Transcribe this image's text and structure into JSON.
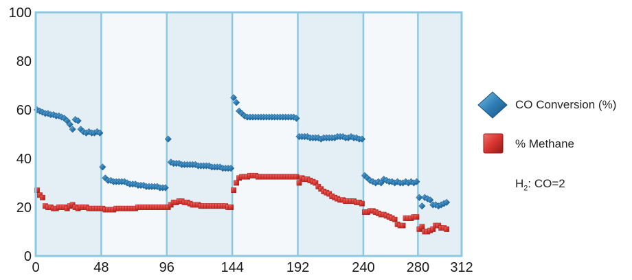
{
  "chart_data": {
    "type": "scatter",
    "title": "",
    "xlabel": "",
    "ylabel": "",
    "xlim": [
      0,
      312
    ],
    "ylim": [
      0,
      100
    ],
    "x_ticks": [
      0,
      48,
      96,
      144,
      192,
      240,
      280,
      312
    ],
    "y_ticks": [
      0,
      20,
      40,
      60,
      80,
      100
    ],
    "period_boundaries": [
      48,
      96,
      144,
      192,
      240,
      280
    ],
    "grid": false,
    "legend_position": "right",
    "note": {
      "base": "H",
      "sub": "2",
      "rest": ": CO=2"
    },
    "colors": {
      "border": "#8cc8e2",
      "band": "#e4eef5",
      "band_alt": "#f4f8fb",
      "co": "#2f7fb6",
      "methane": "#d7342f"
    },
    "series": [
      {
        "name": "CO Conversion (%)",
        "marker": "diamond",
        "color": "#2f7fb6",
        "points": [
          [
            1,
            60
          ],
          [
            3,
            59.5
          ],
          [
            5,
            59
          ],
          [
            7,
            58.5
          ],
          [
            9,
            58.5
          ],
          [
            11,
            58
          ],
          [
            13,
            58
          ],
          [
            15,
            57.5
          ],
          [
            17,
            57.5
          ],
          [
            19,
            57
          ],
          [
            21,
            56.5
          ],
          [
            23,
            55.5
          ],
          [
            25,
            54
          ],
          [
            27,
            52
          ],
          [
            29,
            56
          ],
          [
            31,
            55.5
          ],
          [
            33,
            52
          ],
          [
            35,
            51
          ],
          [
            37,
            50.5
          ],
          [
            39,
            51
          ],
          [
            41,
            50.5
          ],
          [
            43,
            50.5
          ],
          [
            45,
            51
          ],
          [
            47,
            50.5
          ],
          [
            49,
            36.5
          ],
          [
            51,
            32
          ],
          [
            53,
            31
          ],
          [
            55,
            31
          ],
          [
            57,
            30.5
          ],
          [
            59,
            30.5
          ],
          [
            61,
            30.5
          ],
          [
            63,
            30.5
          ],
          [
            65,
            30.5
          ],
          [
            67,
            30
          ],
          [
            69,
            29.5
          ],
          [
            71,
            29.5
          ],
          [
            73,
            29.5
          ],
          [
            75,
            29
          ],
          [
            77,
            29
          ],
          [
            79,
            29
          ],
          [
            81,
            28.5
          ],
          [
            83,
            28.5
          ],
          [
            85,
            28.5
          ],
          [
            87,
            28.5
          ],
          [
            89,
            28.5
          ],
          [
            91,
            28
          ],
          [
            93,
            28
          ],
          [
            95,
            28
          ],
          [
            97,
            48
          ],
          [
            99,
            38.5
          ],
          [
            101,
            38
          ],
          [
            103,
            38
          ],
          [
            105,
            38
          ],
          [
            107,
            37.5
          ],
          [
            109,
            37.5
          ],
          [
            111,
            37.5
          ],
          [
            113,
            37.5
          ],
          [
            115,
            37.5
          ],
          [
            117,
            37.5
          ],
          [
            119,
            37
          ],
          [
            121,
            37
          ],
          [
            123,
            37
          ],
          [
            125,
            37
          ],
          [
            127,
            37
          ],
          [
            129,
            36.5
          ],
          [
            131,
            36.5
          ],
          [
            133,
            36.5
          ],
          [
            135,
            36.5
          ],
          [
            137,
            36
          ],
          [
            139,
            36
          ],
          [
            141,
            36
          ],
          [
            143,
            36
          ],
          [
            145,
            65
          ],
          [
            147,
            63
          ],
          [
            149,
            59.5
          ],
          [
            151,
            58.5
          ],
          [
            153,
            57.5
          ],
          [
            155,
            57
          ],
          [
            157,
            57
          ],
          [
            159,
            57
          ],
          [
            161,
            57
          ],
          [
            163,
            57
          ],
          [
            165,
            57
          ],
          [
            167,
            57
          ],
          [
            169,
            57
          ],
          [
            171,
            57
          ],
          [
            173,
            57
          ],
          [
            175,
            57
          ],
          [
            177,
            57
          ],
          [
            179,
            57
          ],
          [
            181,
            57
          ],
          [
            183,
            57
          ],
          [
            185,
            57
          ],
          [
            187,
            57
          ],
          [
            189,
            57
          ],
          [
            191,
            56.5
          ],
          [
            193,
            49
          ],
          [
            195,
            49
          ],
          [
            197,
            49
          ],
          [
            199,
            49
          ],
          [
            201,
            48.5
          ],
          [
            203,
            48.5
          ],
          [
            205,
            48.5
          ],
          [
            207,
            48.5
          ],
          [
            209,
            48
          ],
          [
            211,
            48.5
          ],
          [
            213,
            48.5
          ],
          [
            215,
            48.5
          ],
          [
            217,
            48.5
          ],
          [
            219,
            48.5
          ],
          [
            221,
            49
          ],
          [
            223,
            49
          ],
          [
            225,
            49
          ],
          [
            227,
            48.5
          ],
          [
            229,
            48.5
          ],
          [
            231,
            49
          ],
          [
            233,
            48.5
          ],
          [
            235,
            48.5
          ],
          [
            237,
            48
          ],
          [
            239,
            48
          ],
          [
            241,
            33
          ],
          [
            243,
            32
          ],
          [
            245,
            31
          ],
          [
            247,
            30.5
          ],
          [
            249,
            30
          ],
          [
            251,
            30.5
          ],
          [
            253,
            30
          ],
          [
            255,
            31.5
          ],
          [
            257,
            31
          ],
          [
            259,
            30.5
          ],
          [
            261,
            30.5
          ],
          [
            263,
            30
          ],
          [
            265,
            30.5
          ],
          [
            267,
            30
          ],
          [
            269,
            30
          ],
          [
            271,
            30.5
          ],
          [
            273,
            30
          ],
          [
            275,
            30.5
          ],
          [
            277,
            30
          ],
          [
            279,
            30.5
          ],
          [
            281,
            24
          ],
          [
            283,
            20.5
          ],
          [
            285,
            24
          ],
          [
            287,
            23.5
          ],
          [
            289,
            23
          ],
          [
            291,
            21
          ],
          [
            293,
            21
          ],
          [
            295,
            20.5
          ],
          [
            297,
            21
          ],
          [
            299,
            21.5
          ],
          [
            301,
            22
          ]
        ]
      },
      {
        "name": "% Methane",
        "marker": "square",
        "color": "#d7342f",
        "points": [
          [
            1,
            27
          ],
          [
            3,
            25
          ],
          [
            5,
            24
          ],
          [
            7,
            20.5
          ],
          [
            9,
            20
          ],
          [
            11,
            20
          ],
          [
            13,
            19.5
          ],
          [
            15,
            19.5
          ],
          [
            17,
            20
          ],
          [
            19,
            20
          ],
          [
            21,
            20
          ],
          [
            23,
            19.5
          ],
          [
            25,
            20.5
          ],
          [
            27,
            21
          ],
          [
            29,
            20
          ],
          [
            31,
            19.5
          ],
          [
            33,
            20
          ],
          [
            35,
            20
          ],
          [
            37,
            20
          ],
          [
            39,
            19.5
          ],
          [
            41,
            19.5
          ],
          [
            43,
            19.5
          ],
          [
            45,
            19.5
          ],
          [
            47,
            19.5
          ],
          [
            49,
            19.5
          ],
          [
            51,
            19
          ],
          [
            53,
            19
          ],
          [
            55,
            19
          ],
          [
            57,
            19
          ],
          [
            59,
            19.5
          ],
          [
            61,
            19.5
          ],
          [
            63,
            19.5
          ],
          [
            65,
            19.5
          ],
          [
            67,
            19.5
          ],
          [
            69,
            19.5
          ],
          [
            71,
            19.5
          ],
          [
            73,
            19.5
          ],
          [
            75,
            20
          ],
          [
            77,
            20
          ],
          [
            79,
            20
          ],
          [
            81,
            20
          ],
          [
            83,
            20
          ],
          [
            85,
            20
          ],
          [
            87,
            20
          ],
          [
            89,
            20
          ],
          [
            91,
            20
          ],
          [
            93,
            20
          ],
          [
            95,
            20
          ],
          [
            97,
            20
          ],
          [
            99,
            21
          ],
          [
            101,
            22
          ],
          [
            103,
            22
          ],
          [
            105,
            22.5
          ],
          [
            107,
            22.5
          ],
          [
            109,
            22
          ],
          [
            111,
            22
          ],
          [
            113,
            21.5
          ],
          [
            115,
            21
          ],
          [
            117,
            21
          ],
          [
            119,
            21
          ],
          [
            121,
            20.5
          ],
          [
            123,
            20.5
          ],
          [
            125,
            20.5
          ],
          [
            127,
            20.5
          ],
          [
            129,
            20.5
          ],
          [
            131,
            20.5
          ],
          [
            133,
            20.5
          ],
          [
            135,
            20.5
          ],
          [
            137,
            20.5
          ],
          [
            139,
            20.5
          ],
          [
            141,
            20
          ],
          [
            143,
            20
          ],
          [
            145,
            27
          ],
          [
            147,
            30
          ],
          [
            149,
            32
          ],
          [
            151,
            32.5
          ],
          [
            153,
            32.5
          ],
          [
            155,
            32.5
          ],
          [
            157,
            33
          ],
          [
            159,
            33
          ],
          [
            161,
            33
          ],
          [
            163,
            32.5
          ],
          [
            165,
            32.5
          ],
          [
            167,
            32.5
          ],
          [
            169,
            32.5
          ],
          [
            171,
            32.5
          ],
          [
            173,
            32.5
          ],
          [
            175,
            32.5
          ],
          [
            177,
            32.5
          ],
          [
            179,
            32.5
          ],
          [
            181,
            32.5
          ],
          [
            183,
            32.5
          ],
          [
            185,
            32.5
          ],
          [
            187,
            32.5
          ],
          [
            189,
            32.5
          ],
          [
            191,
            32.5
          ],
          [
            193,
            30
          ],
          [
            195,
            32
          ],
          [
            197,
            31.5
          ],
          [
            199,
            31.5
          ],
          [
            201,
            31
          ],
          [
            203,
            30.5
          ],
          [
            205,
            30
          ],
          [
            207,
            28.5
          ],
          [
            209,
            27.5
          ],
          [
            211,
            26.5
          ],
          [
            213,
            26
          ],
          [
            215,
            25.5
          ],
          [
            217,
            24.5
          ],
          [
            219,
            24
          ],
          [
            221,
            23.5
          ],
          [
            223,
            23
          ],
          [
            225,
            23
          ],
          [
            227,
            22.5
          ],
          [
            229,
            22.5
          ],
          [
            231,
            22.5
          ],
          [
            233,
            22.5
          ],
          [
            235,
            22
          ],
          [
            237,
            22
          ],
          [
            239,
            21.5
          ],
          [
            241,
            18
          ],
          [
            243,
            18
          ],
          [
            245,
            18.5
          ],
          [
            247,
            18.5
          ],
          [
            249,
            18
          ],
          [
            251,
            17.5
          ],
          [
            253,
            17
          ],
          [
            255,
            17
          ],
          [
            257,
            16.5
          ],
          [
            259,
            16
          ],
          [
            261,
            15.5
          ],
          [
            263,
            15
          ],
          [
            265,
            13
          ],
          [
            267,
            12.5
          ],
          [
            269,
            12.5
          ],
          [
            271,
            15.5
          ],
          [
            273,
            15.5
          ],
          [
            275,
            15.5
          ],
          [
            277,
            16
          ],
          [
            279,
            16
          ],
          [
            281,
            11
          ],
          [
            283,
            12
          ],
          [
            285,
            10
          ],
          [
            287,
            10
          ],
          [
            289,
            10.5
          ],
          [
            291,
            11
          ],
          [
            293,
            12.5
          ],
          [
            295,
            12.5
          ],
          [
            297,
            11.5
          ],
          [
            299,
            11.5
          ],
          [
            301,
            11
          ]
        ]
      }
    ]
  }
}
